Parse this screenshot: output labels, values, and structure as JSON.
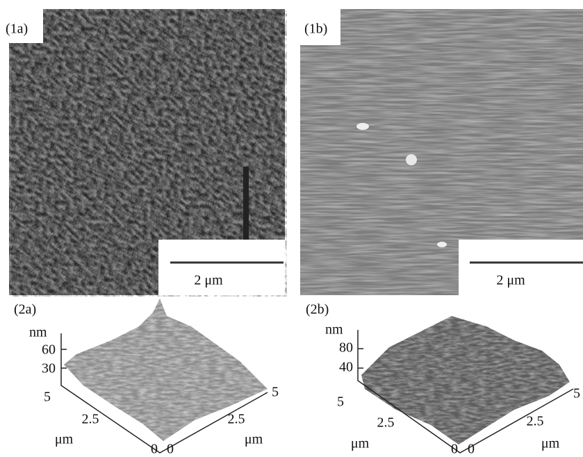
{
  "panels": [
    {
      "label": "(1a)",
      "scale_bar": "2 μm"
    },
    {
      "label": "(1b)",
      "scale_bar": "2 μm"
    },
    {
      "label": "(2a)",
      "z_unit": "nm",
      "z_ticks": [
        60,
        30
      ],
      "left_axis": {
        "ticks": [
          5,
          2.5,
          0
        ],
        "unit": "μm"
      },
      "right_axis": {
        "ticks": [
          0,
          2.5,
          5
        ],
        "unit": "μm"
      }
    },
    {
      "label": "(2b)",
      "z_unit": "nm",
      "z_ticks": [
        80,
        40
      ],
      "left_axis": {
        "ticks": [
          5,
          2.5,
          0
        ],
        "unit": "μm"
      },
      "right_axis": {
        "ticks": [
          0,
          2.5,
          5
        ],
        "unit": "μm"
      }
    }
  ]
}
